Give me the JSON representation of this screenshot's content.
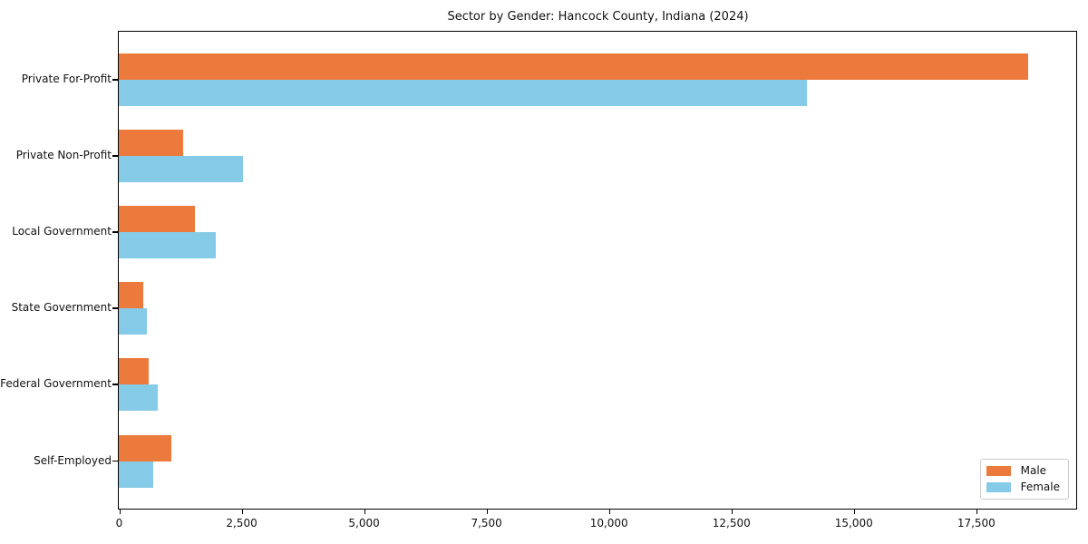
{
  "title": "Sector by Gender: Hancock County, Indiana (2024)",
  "colors": {
    "male": "#ec7a3c",
    "female": "#85cbe8",
    "axis": "#000000",
    "legend_border": "#cccccc",
    "background": "#ffffff"
  },
  "legend": {
    "position": "lower right",
    "items": [
      "Male",
      "Female"
    ]
  },
  "chart_data": {
    "type": "bar",
    "orientation": "horizontal",
    "title": "Sector by Gender: Hancock County, Indiana (2024)",
    "xlabel": "",
    "ylabel": "",
    "categories": [
      "Private For-Profit",
      "Private Non-Profit",
      "Local Government",
      "State Government",
      "Federal Government",
      "Self-Employed"
    ],
    "series": [
      {
        "name": "Male",
        "color": "#ec7a3c",
        "values": [
          18560,
          1310,
          1550,
          500,
          610,
          1070
        ]
      },
      {
        "name": "Female",
        "color": "#85cbe8",
        "values": [
          14050,
          2530,
          1980,
          570,
          795,
          700
        ]
      }
    ],
    "xlim": [
      0,
      19530
    ],
    "xticks": [
      0,
      2500,
      5000,
      7500,
      10000,
      12500,
      15000,
      17500
    ],
    "xtick_labels": [
      "0",
      "2,500",
      "5,000",
      "7,500",
      "10,000",
      "12,500",
      "15,000",
      "17,500"
    ],
    "grid": false,
    "legend_position": "lower right"
  }
}
